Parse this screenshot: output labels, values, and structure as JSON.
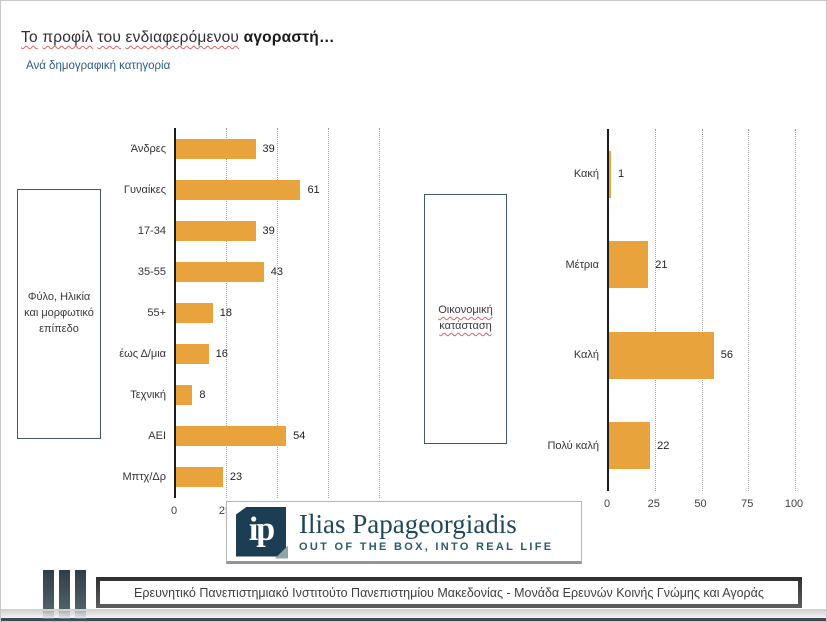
{
  "slide": {
    "title": {
      "word1": "Το",
      "word2": "προφίλ",
      "word3": "του",
      "word4": "ενδιαφερόμενου",
      "bold": "αγοραστή…"
    },
    "subtitle": "Ανά δημογραφική κατηγορία"
  },
  "chart_data": [
    {
      "type": "bar",
      "orientation": "horizontal",
      "group_label": "Φύλο, Ηλικία και μορφωτικό επίπεδο",
      "categories": [
        "Άνδρες",
        "Γυναίκες",
        "17-34",
        "35-55",
        "55+",
        "έως Δ/μια",
        "Τεχνική",
        "ΑΕΙ",
        "Μπτχ/Δρ"
      ],
      "values": [
        39,
        61,
        39,
        43,
        18,
        16,
        8,
        54,
        23
      ],
      "xlim": [
        0,
        100
      ],
      "xticks": [
        0,
        25,
        50,
        75,
        100
      ],
      "grid": "vertical-dotted",
      "legend": "none",
      "bar_color": "#E8A33D"
    },
    {
      "type": "bar",
      "orientation": "horizontal",
      "group_label": "Οικονομική κατάσταση",
      "categories": [
        "Κακή",
        "Μέτρια",
        "Καλή",
        "Πολύ καλή"
      ],
      "values": [
        1,
        21,
        56,
        22
      ],
      "xlim": [
        0,
        100
      ],
      "xticks": [
        0,
        25,
        50,
        75,
        100
      ],
      "grid": "vertical-dotted",
      "legend": "none",
      "bar_color": "#E8A33D"
    }
  ],
  "logo": {
    "monogram": "ip",
    "name": "Ilias Papageorgiadis",
    "tagline": "OUT OF THE BOX, INTO REAL LIFE"
  },
  "footer": {
    "text": "Ερευνητικό Πανεπιστημιακό Ινστιτούτο Πανεπιστημίου Μακεδονίας - Μονάδα Ερευνών Κοινής Γνώμης και Αγοράς"
  },
  "colors": {
    "bar": "#E8A33D",
    "subtitle_blue": "#2E5C82",
    "logo_navy": "#1C3E52",
    "footer_gray": "#4A4A4A",
    "bottom_line": "#3E4C5A",
    "box_border": "#44546A"
  }
}
